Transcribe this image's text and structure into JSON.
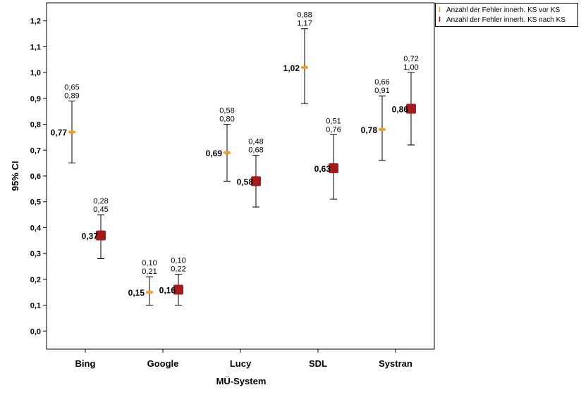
{
  "chart_data": {
    "type": "errorbar",
    "xlabel": "MÜ-System",
    "ylabel": "95% CI",
    "ylim": [
      -0.07,
      1.27
    ],
    "yticks": [
      "0,0",
      "0,1",
      "0,2",
      "0,3",
      "0,4",
      "0,5",
      "0,6",
      "0,7",
      "0,8",
      "0,9",
      "1,0",
      "1,1",
      "1,2"
    ],
    "ytick_values": [
      0,
      0.1,
      0.2,
      0.3,
      0.4,
      0.5,
      0.6,
      0.7,
      0.8,
      0.9,
      1.0,
      1.1,
      1.2
    ],
    "grid": false,
    "legend_position": "top-right",
    "categories": [
      "Bing",
      "Google",
      "Lucy",
      "SDL",
      "Systran"
    ],
    "series": [
      {
        "name": "Anzahl der Fehler innerh. KS vor KS",
        "color": "#f59a23",
        "marker": "dash",
        "mean": [
          0.77,
          0.15,
          0.69,
          1.02,
          0.78
        ],
        "lower": [
          0.65,
          0.1,
          0.58,
          0.88,
          0.66
        ],
        "upper": [
          0.89,
          0.21,
          0.8,
          1.17,
          0.91
        ],
        "mean_labels": [
          "0,77",
          "0,15",
          "0,69",
          "1,02",
          "0,78"
        ],
        "lower_labels": [
          "0,65",
          "0,10",
          "0,58",
          "0,88",
          "0,66"
        ],
        "upper_labels": [
          "0,89",
          "0,21",
          "0,80",
          "1,17",
          "0,91"
        ]
      },
      {
        "name": "Anzahl der Fehler innerh. KS nach KS",
        "color": "#a31b1b",
        "marker": "square",
        "mean": [
          0.37,
          0.16,
          0.58,
          0.63,
          0.86
        ],
        "lower": [
          0.28,
          0.1,
          0.48,
          0.51,
          0.72
        ],
        "upper": [
          0.45,
          0.22,
          0.68,
          0.76,
          1.0
        ],
        "mean_labels": [
          "0,37",
          "0,16",
          "0,58",
          "0,63",
          "0,86"
        ],
        "lower_labels": [
          "0,28",
          "0,10",
          "0,48",
          "0,51",
          "0,72"
        ],
        "upper_labels": [
          "0,45",
          "0,22",
          "0,68",
          "0,76",
          "1,00"
        ]
      }
    ]
  }
}
